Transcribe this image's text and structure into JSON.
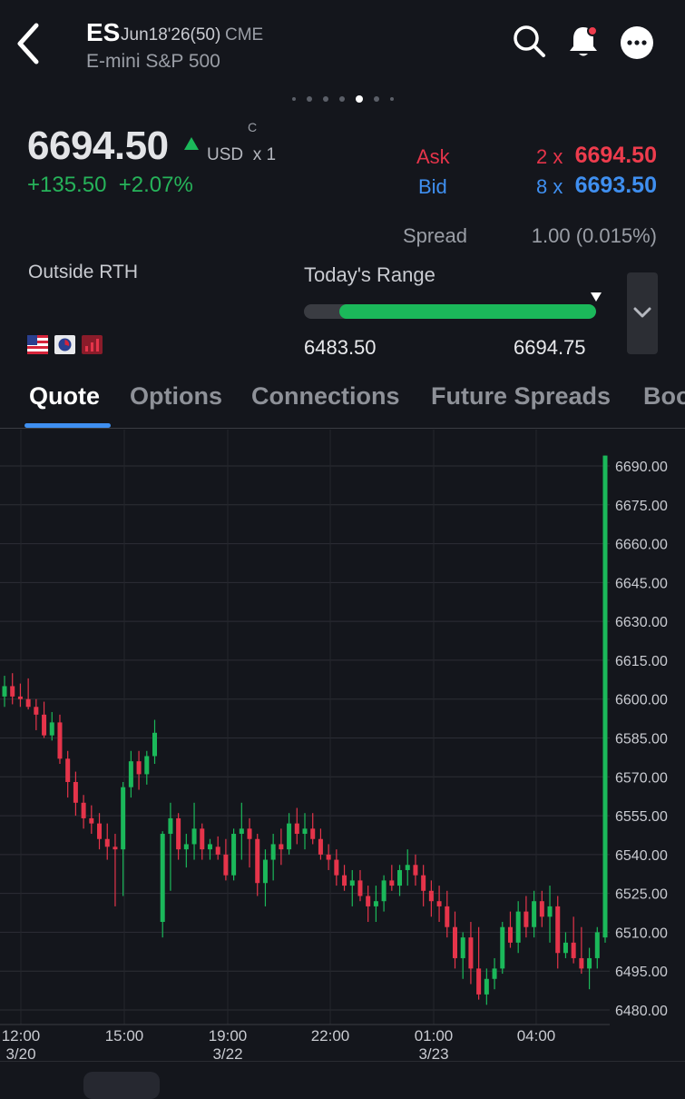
{
  "header": {
    "symbol": "ES",
    "contract": "Jun18'26(50)",
    "exchange": "CME",
    "subtitle": "E-mini S&P 500",
    "icons": [
      "back-icon",
      "search-icon",
      "bell-icon",
      "more-icon"
    ],
    "page_dots": {
      "count": 7,
      "active_index": 4
    }
  },
  "quote": {
    "price": "6694.50",
    "flag": "C",
    "currency": "USD",
    "multiplier": "x 1",
    "change": "+135.50",
    "change_pct": "+2.07%",
    "ask_label": "Ask",
    "ask_size": "2 x",
    "ask_price": "6694.50",
    "bid_label": "Bid",
    "bid_size": "8 x",
    "bid_price": "6693.50",
    "spread_label": "Spread",
    "spread_value": "1.00 (0.015%)",
    "session": "Outside RTH",
    "range_label": "Today's Range",
    "range_low": "6483.50",
    "range_high": "6694.75",
    "range_fill_start": 0.12,
    "range_fill_end": 1.0,
    "colors": {
      "up": "#1bb85a",
      "down": "#e5344a",
      "ask": "#e5344a",
      "bid": "#3f8ff0"
    }
  },
  "tabs": [
    {
      "label": "Quote",
      "active": true
    },
    {
      "label": "Options",
      "active": false
    },
    {
      "label": "Connections",
      "active": false
    },
    {
      "label": "Future Spreads",
      "active": false
    },
    {
      "label": "Boo",
      "active": false
    }
  ],
  "chart_data": {
    "type": "candlestick",
    "y_ticks": [
      "6690.00",
      "6675.00",
      "6660.00",
      "6645.00",
      "6630.00",
      "6615.00",
      "6600.00",
      "6585.00",
      "6570.00",
      "6555.00",
      "6540.00",
      "6525.00",
      "6510.00",
      "6495.00",
      "6480.00"
    ],
    "x_ticks": [
      {
        "time": "12:00",
        "date": "3/20"
      },
      {
        "time": "15:00",
        "date": ""
      },
      {
        "time": "19:00",
        "date": "3/22"
      },
      {
        "time": "22:00",
        "date": ""
      },
      {
        "time": "01:00",
        "date": "3/23"
      },
      {
        "time": "04:00",
        "date": ""
      }
    ],
    "ylim": [
      6475,
      6700
    ],
    "grid": true,
    "candles": [
      [
        6601,
        6609,
        6597,
        6605
      ],
      [
        6605,
        6610,
        6598,
        6601
      ],
      [
        6601,
        6606,
        6597,
        6600
      ],
      [
        6600,
        6608,
        6596,
        6597
      ],
      [
        6597,
        6600,
        6588,
        6594
      ],
      [
        6594,
        6599,
        6585,
        6586
      ],
      [
        6586,
        6595,
        6584,
        6591
      ],
      [
        6591,
        6594,
        6575,
        6577
      ],
      [
        6577,
        6580,
        6562,
        6568
      ],
      [
        6568,
        6572,
        6555,
        6560
      ],
      [
        6560,
        6563,
        6550,
        6554
      ],
      [
        6554,
        6559,
        6548,
        6552
      ],
      [
        6552,
        6556,
        6542,
        6546
      ],
      [
        6546,
        6552,
        6538,
        6543
      ],
      [
        6543,
        6548,
        6520,
        6542
      ],
      [
        6542,
        6568,
        6524,
        6566
      ],
      [
        6566,
        6580,
        6562,
        6576
      ],
      [
        6576,
        6580,
        6565,
        6571
      ],
      [
        6571,
        6580,
        6567,
        6578
      ],
      [
        6578,
        6592,
        6575,
        6587
      ],
      [
        6514,
        6549,
        6508,
        6548
      ],
      [
        6548,
        6560,
        6526,
        6554
      ],
      [
        6554,
        6556,
        6538,
        6542
      ],
      [
        6542,
        6548,
        6535,
        6544
      ],
      [
        6544,
        6560,
        6538,
        6550
      ],
      [
        6550,
        6552,
        6538,
        6542
      ],
      [
        6542,
        6546,
        6538,
        6544
      ],
      [
        6543,
        6547,
        6538,
        6540
      ],
      [
        6540,
        6546,
        6530,
        6532
      ],
      [
        6532,
        6550,
        6530,
        6548
      ],
      [
        6548,
        6560,
        6538,
        6550
      ],
      [
        6550,
        6554,
        6535,
        6546
      ],
      [
        6546,
        6548,
        6524,
        6529
      ],
      [
        6529,
        6542,
        6520,
        6538
      ],
      [
        6538,
        6548,
        6530,
        6544
      ],
      [
        6544,
        6550,
        6536,
        6542
      ],
      [
        6542,
        6556,
        6540,
        6552
      ],
      [
        6552,
        6558,
        6544,
        6548
      ],
      [
        6548,
        6556,
        6542,
        6550
      ],
      [
        6550,
        6556,
        6544,
        6546
      ],
      [
        6546,
        6550,
        6538,
        6540
      ],
      [
        6540,
        6544,
        6534,
        6538
      ],
      [
        6538,
        6542,
        6528,
        6532
      ],
      [
        6532,
        6536,
        6526,
        6528
      ],
      [
        6528,
        6534,
        6520,
        6530
      ],
      [
        6530,
        6534,
        6522,
        6524
      ],
      [
        6524,
        6528,
        6514,
        6520
      ],
      [
        6520,
        6528,
        6514,
        6522
      ],
      [
        6522,
        6532,
        6518,
        6530
      ],
      [
        6530,
        6536,
        6526,
        6528
      ],
      [
        6528,
        6536,
        6524,
        6534
      ],
      [
        6534,
        6542,
        6528,
        6536
      ],
      [
        6536,
        6540,
        6528,
        6532
      ],
      [
        6532,
        6536,
        6520,
        6526
      ],
      [
        6526,
        6530,
        6516,
        6522
      ],
      [
        6522,
        6528,
        6514,
        6520
      ],
      [
        6520,
        6526,
        6508,
        6512
      ],
      [
        6512,
        6518,
        6496,
        6500
      ],
      [
        6500,
        6510,
        6492,
        6508
      ],
      [
        6508,
        6514,
        6490,
        6496
      ],
      [
        6496,
        6512,
        6484,
        6486
      ],
      [
        6486,
        6496,
        6482,
        6492
      ],
      [
        6492,
        6500,
        6488,
        6496
      ],
      [
        6496,
        6514,
        6494,
        6512
      ],
      [
        6512,
        6518,
        6504,
        6506
      ],
      [
        6506,
        6522,
        6502,
        6518
      ],
      [
        6518,
        6524,
        6508,
        6512
      ],
      [
        6512,
        6526,
        6508,
        6522
      ],
      [
        6522,
        6526,
        6512,
        6516
      ],
      [
        6516,
        6528,
        6506,
        6520
      ],
      [
        6520,
        6524,
        6496,
        6502
      ],
      [
        6502,
        6510,
        6500,
        6506
      ],
      [
        6506,
        6516,
        6498,
        6500
      ],
      [
        6500,
        6512,
        6494,
        6496
      ],
      [
        6496,
        6504,
        6488,
        6500
      ],
      [
        6500,
        6512,
        6496,
        6510
      ],
      [
        6508,
        6694,
        6506,
        6694
      ]
    ]
  }
}
